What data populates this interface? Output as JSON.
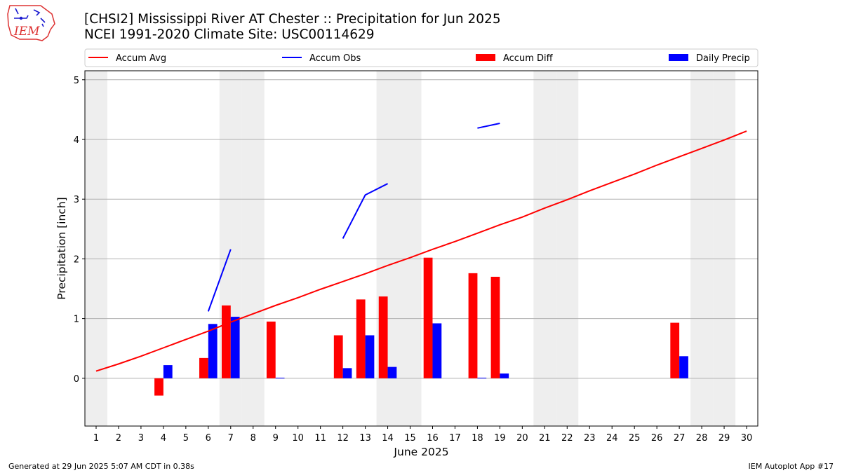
{
  "header": {
    "title_line1": "[CHSI2] Mississippi River  AT Chester :: Precipitation for Jun 2025",
    "title_line2": "NCEI 1991-2020 Climate Site: USC00114629",
    "logo_text": "IEM"
  },
  "footer": {
    "left": "Generated at 29 Jun 2025 5:07 AM CDT in 0.38s",
    "right": "IEM Autoplot App #17"
  },
  "chart_data": {
    "type": "bar",
    "xlabel": "June 2025",
    "ylabel": "Precipitation [inch]",
    "xlim": [
      0.5,
      30.5
    ],
    "ylim": [
      -0.8,
      5.15
    ],
    "yticks": [
      0,
      1,
      2,
      3,
      4,
      5
    ],
    "grid": true,
    "legend_placement": "top",
    "weekend_days": [
      1,
      7,
      8,
      14,
      15,
      21,
      22,
      28,
      29
    ],
    "days": [
      1,
      2,
      3,
      4,
      5,
      6,
      7,
      8,
      9,
      10,
      11,
      12,
      13,
      14,
      15,
      16,
      17,
      18,
      19,
      20,
      21,
      22,
      23,
      24,
      25,
      26,
      27,
      28,
      29,
      30
    ],
    "series": [
      {
        "name": "Accum Avg",
        "kind": "line",
        "color": "#ff0000",
        "x": [
          1,
          2,
          3,
          4,
          5,
          6,
          7,
          8,
          9,
          10,
          11,
          12,
          13,
          14,
          15,
          16,
          17,
          18,
          19,
          20,
          21,
          22,
          23,
          24,
          25,
          26,
          27,
          28,
          29,
          30
        ],
        "values": [
          0.12,
          0.24,
          0.37,
          0.51,
          0.65,
          0.79,
          0.94,
          1.08,
          1.22,
          1.35,
          1.49,
          1.62,
          1.75,
          1.89,
          2.02,
          2.16,
          2.29,
          2.43,
          2.57,
          2.7,
          2.85,
          2.99,
          3.14,
          3.28,
          3.42,
          3.57,
          3.71,
          3.85,
          3.99,
          4.14
        ]
      },
      {
        "name": "Accum Obs",
        "kind": "line",
        "color": "#0000ff",
        "segments": [
          {
            "x": [
              6,
              7
            ],
            "values": [
              1.12,
              2.16
            ]
          },
          {
            "x": [
              12,
              13,
              14
            ],
            "values": [
              2.34,
              3.07,
              3.26
            ]
          },
          {
            "x": [
              18,
              19
            ],
            "values": [
              4.19,
              4.27
            ]
          }
        ]
      },
      {
        "name": "Accum Diff",
        "kind": "bar",
        "color": "#ff0000",
        "x": [
          4,
          6,
          7,
          9,
          12,
          13,
          14,
          16,
          18,
          19,
          27
        ],
        "values": [
          -0.29,
          0.34,
          1.22,
          0.95,
          0.72,
          1.32,
          1.37,
          2.02,
          1.76,
          1.7,
          0.93
        ]
      },
      {
        "name": "Daily Precip",
        "kind": "bar",
        "color": "#0000ff",
        "x": [
          4,
          6,
          7,
          9,
          12,
          13,
          14,
          16,
          18,
          19,
          27
        ],
        "values": [
          0.22,
          0.91,
          1.03,
          0.01,
          0.17,
          0.72,
          0.19,
          0.92,
          0.01,
          0.08,
          0.37
        ]
      }
    ]
  }
}
